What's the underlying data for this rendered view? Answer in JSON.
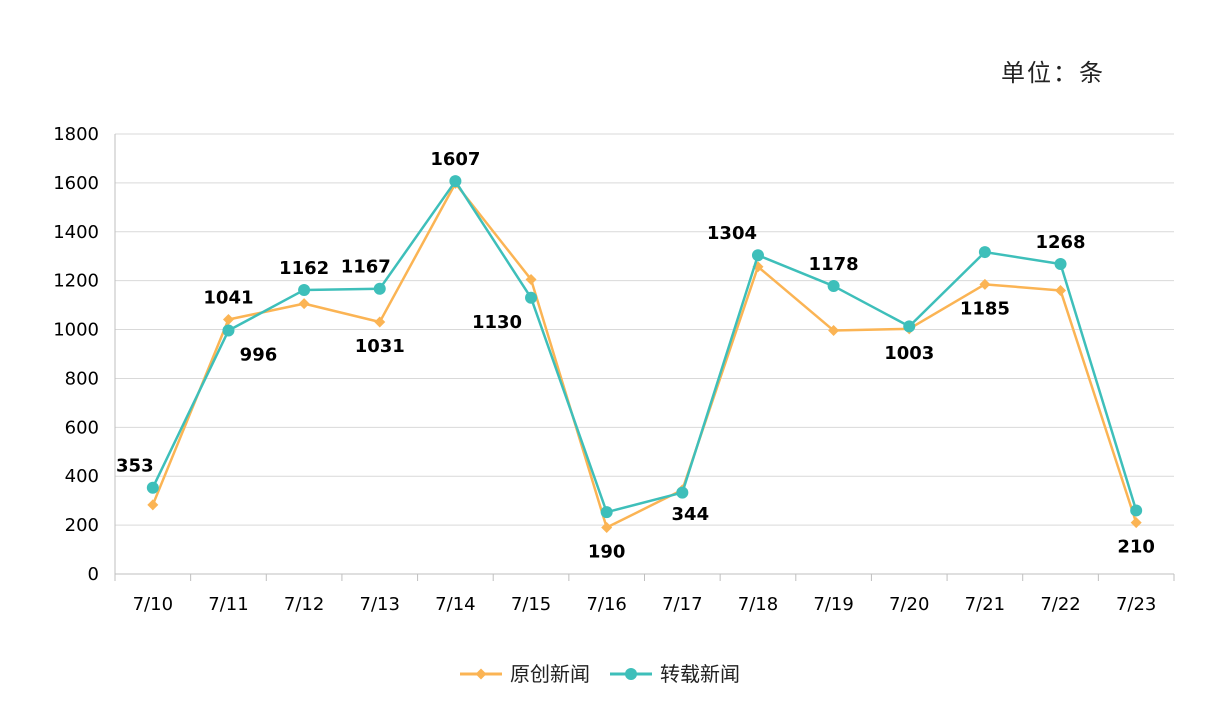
{
  "chart_data": {
    "type": "line",
    "unit_label": "单位：条",
    "categories": [
      "7/10",
      "7/11",
      "7/12",
      "7/13",
      "7/14",
      "7/15",
      "7/16",
      "7/17",
      "7/18",
      "7/19",
      "7/20",
      "7/21",
      "7/22",
      "7/23"
    ],
    "ylim": [
      0,
      1800
    ],
    "yticks": [
      0,
      200,
      400,
      600,
      800,
      1000,
      1200,
      1400,
      1600,
      1800
    ],
    "grid": true,
    "legend_position": "bottom",
    "series": [
      {
        "name": "原创新闻",
        "color": "#FBB454",
        "marker": "diamond",
        "values": [
          283,
          1041,
          1106,
          1031,
          1598,
          1205,
          190,
          344,
          1257,
          996,
          1003,
          1185,
          1160,
          210
        ],
        "labels": [
          null,
          "1041",
          null,
          "1031",
          null,
          null,
          "190",
          "344",
          null,
          null,
          "1003",
          "1185",
          null,
          "210"
        ]
      },
      {
        "name": "转载新闻",
        "color": "#3EBFBA",
        "marker": "circle",
        "values": [
          353,
          996,
          1162,
          1167,
          1607,
          1130,
          253,
          333,
          1304,
          1178,
          1013,
          1317,
          1268,
          260
        ],
        "labels": [
          "353",
          "996",
          "1162",
          "1167",
          "1607",
          "1130",
          null,
          null,
          "1304",
          "1178",
          null,
          null,
          "1268",
          null
        ]
      }
    ]
  }
}
